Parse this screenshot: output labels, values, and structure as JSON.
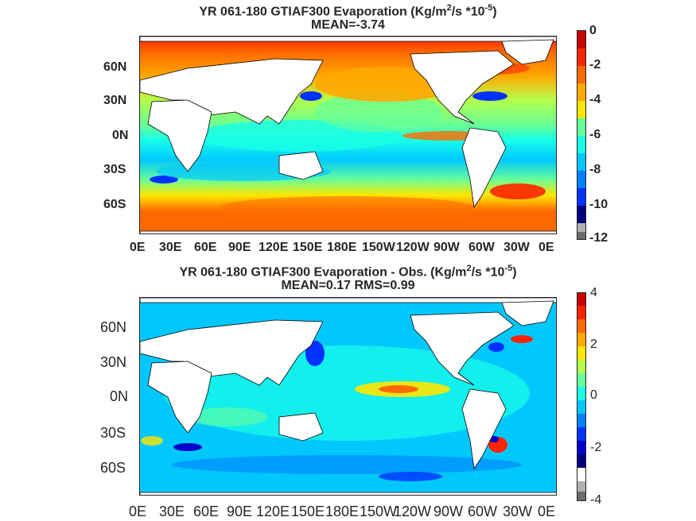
{
  "top": {
    "title_line1_a": "YR 061-180 GTIAF300  Evaporation (Kg/m",
    "title_sup1": "2",
    "title_line1_b": "/s *10",
    "title_sup2": "-5",
    "title_line1_c": ")",
    "title_line2": "MEAN=-3.74",
    "lat_ticks": [
      "60N",
      "30N",
      "0N",
      "30S",
      "60S"
    ],
    "lon_ticks": [
      "0E",
      "30E",
      "60E",
      "90E",
      "120E",
      "150E",
      "180E",
      "150W",
      "120W",
      "90W",
      "60W",
      "30W",
      "0E"
    ],
    "colorbar_ticks": [
      "0",
      "-2",
      "-4",
      "-6",
      "-8",
      "-10",
      "-12"
    ]
  },
  "bottom": {
    "title_line1_a": "YR 061-180 GTIAF300 Evaporation - Obs. (Kg/m",
    "title_sup1": "2",
    "title_line1_b": "/s *10",
    "title_sup2": "-5",
    "title_line1_c": ")",
    "title_line2": "MEAN=0.17   RMS=0.99",
    "lat_ticks": [
      "60N",
      "30N",
      "0N",
      "30S",
      "60S"
    ],
    "lon_ticks": [
      "0E",
      "30E",
      "60E",
      "90E",
      "120E",
      "150E",
      "180E",
      "150W",
      "120W",
      "90W",
      "60W",
      "30W",
      "0E"
    ],
    "colorbar_ticks": [
      "4",
      "2",
      "0",
      "-2",
      "-4"
    ]
  },
  "colors": {
    "land": "#ffffff",
    "colormap": [
      "#6b6b6b",
      "#b0b0b0",
      "#00007f",
      "#0000c8",
      "#0031ff",
      "#0080ff",
      "#00c8ff",
      "#19ffe6",
      "#66ff99",
      "#b3ff4c",
      "#ffe600",
      "#ffa800",
      "#ff6a00",
      "#ff2400",
      "#c80000"
    ]
  }
}
